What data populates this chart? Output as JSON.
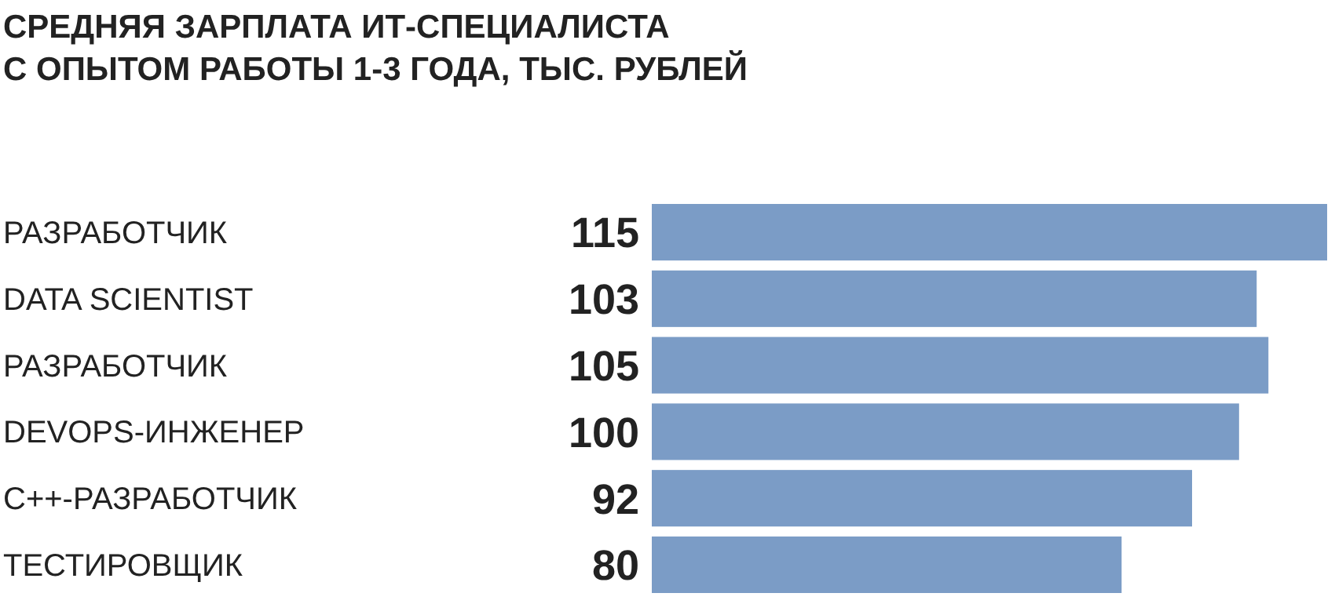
{
  "chart_data": {
    "type": "bar",
    "orientation": "horizontal",
    "title": "СРЕДНЯЯ ЗАРПЛАТА ИТ-СПЕЦИАЛИСТА\nС ОПЫТОМ РАБОТЫ 1-3 ГОДА, ТЫС. РУБЛЕЙ",
    "categories": [
      "РАЗРАБОТЧИК",
      "DATA SCIENTIST",
      "РАЗРАБОТЧИК",
      "DEVOPS-ИНЖЕНЕР",
      "C++-РАЗРАБОТЧИК",
      "ТЕСТИРОВЩИК"
    ],
    "values": [
      115,
      103,
      105,
      100,
      92,
      80
    ],
    "color": "#7b9cc6",
    "data_labels": true
  }
}
